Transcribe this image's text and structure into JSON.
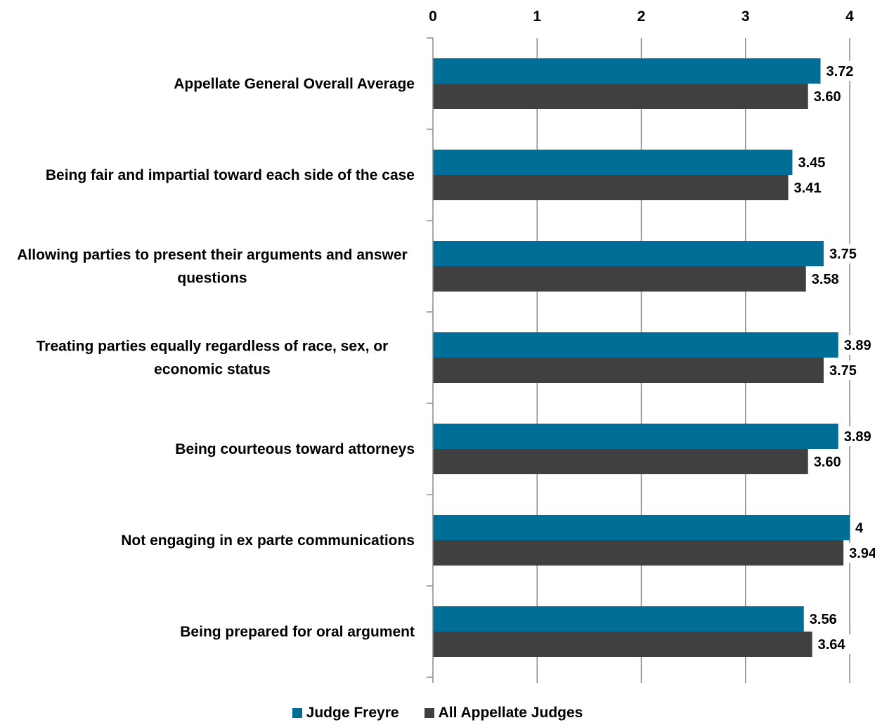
{
  "chart_data": {
    "type": "bar",
    "orientation": "horizontal",
    "categories": [
      [
        "Appellate General Overall Average"
      ],
      [
        "Being fair and impartial toward each side of the case"
      ],
      [
        "Allowing parties to present their arguments and answer",
        "questions"
      ],
      [
        "Treating parties equally regardless of race, sex, or",
        "economic status"
      ],
      [
        "Being courteous toward attorneys"
      ],
      [
        "Not engaging in ex parte communications"
      ],
      [
        "Being prepared for oral argument"
      ]
    ],
    "series": [
      {
        "name": "Judge Freyre",
        "color": "#006E96",
        "values": [
          3.72,
          3.45,
          3.75,
          3.89,
          3.89,
          4,
          3.56
        ],
        "labels": [
          "3.72",
          "3.45",
          "3.75",
          "3.89",
          "3.89",
          "4",
          "3.56"
        ]
      },
      {
        "name": "All Appellate Judges",
        "color": "#404040",
        "values": [
          3.6,
          3.41,
          3.58,
          3.75,
          3.6,
          3.94,
          3.64
        ],
        "labels": [
          "3.60",
          "3.41",
          "3.58",
          "3.75",
          "3.60",
          "3.94",
          "3.64"
        ]
      }
    ],
    "xlim": [
      0,
      4
    ],
    "xticks": [
      "0",
      "1",
      "2",
      "3",
      "4"
    ],
    "x_axis_position": "top",
    "grid": true,
    "legend_position": "bottom",
    "title": "",
    "xlabel": "",
    "ylabel": ""
  }
}
